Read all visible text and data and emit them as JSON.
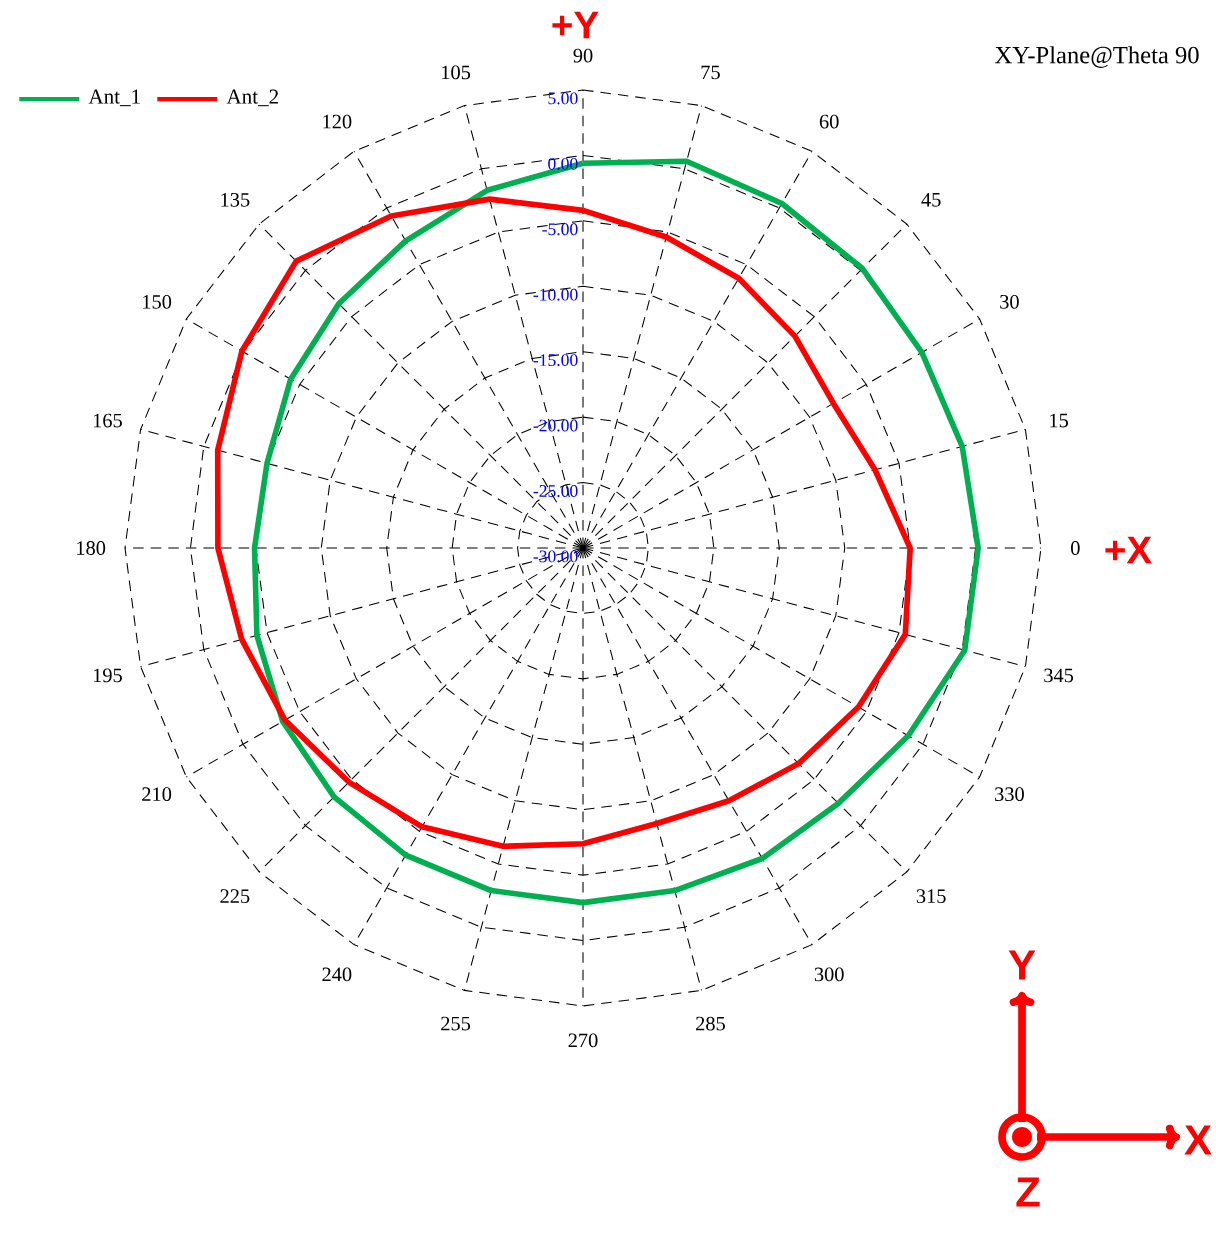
{
  "chart_data": {
    "type": "radar",
    "title": "XY-Plane@Theta 90",
    "categories": [
      "90",
      "75",
      "60",
      "45",
      "30",
      "15",
      "0",
      "345",
      "330",
      "315",
      "300",
      "285",
      "270",
      "255",
      "240",
      "225",
      "210",
      "195",
      "180",
      "165",
      "150",
      "135",
      "120",
      "105"
    ],
    "series": [
      {
        "name": "Ant_1",
        "color": "#00b050",
        "values": [
          -0.6,
          0.6,
          0.4,
          0.2,
          -0.1,
          0.0,
          0.2,
          0.2,
          -1.3,
          -2.4,
          -2.6,
          -2.9,
          -2.9,
          -2.9,
          -2.9,
          -3.1,
          -3.5,
          -4.2,
          -4.9,
          -5.0,
          -4.2,
          -3.6,
          -2.9,
          -1.7
        ]
      },
      {
        "name": "Ant_2",
        "color": "#ff0000",
        "values": [
          -4.2,
          -5.4,
          -6.2,
          -7.1,
          -7.9,
          -6.9,
          -5.0,
          -4.5,
          -5.7,
          -6.7,
          -7.7,
          -8.2,
          -7.4,
          -6.4,
          -5.4,
          -4.7,
          -3.7,
          -3.0,
          -2.1,
          -1.1,
          0.1,
          1.0,
          -0.7,
          -2.4
        ]
      }
    ],
    "ylim": [
      -30,
      5
    ],
    "yticks": [
      {
        "value": -30,
        "label": "-30.00"
      },
      {
        "value": -25,
        "label": "-25.00"
      },
      {
        "value": -20,
        "label": "-20.00"
      },
      {
        "value": -15,
        "label": "-15.00"
      },
      {
        "value": -10,
        "label": "-10.00"
      },
      {
        "value": -5,
        "label": "-5.00"
      },
      {
        "value": 0,
        "label": "0.00"
      },
      {
        "value": 5,
        "label": "5.00"
      }
    ],
    "grid": true,
    "legend": "top left",
    "marker": "none",
    "line_style": "solid",
    "annotations": [
      "+Y",
      "+X",
      "Y",
      "X",
      "Z"
    ]
  }
}
